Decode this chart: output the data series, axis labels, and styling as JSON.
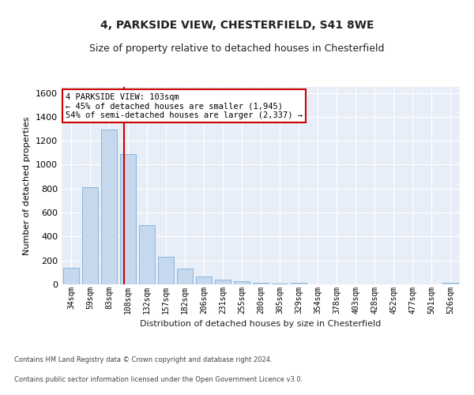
{
  "title1": "4, PARKSIDE VIEW, CHESTERFIELD, S41 8WE",
  "title2": "Size of property relative to detached houses in Chesterfield",
  "xlabel": "Distribution of detached houses by size in Chesterfield",
  "ylabel": "Number of detached properties",
  "categories": [
    "34sqm",
    "59sqm",
    "83sqm",
    "108sqm",
    "132sqm",
    "157sqm",
    "182sqm",
    "206sqm",
    "231sqm",
    "255sqm",
    "280sqm",
    "305sqm",
    "329sqm",
    "354sqm",
    "378sqm",
    "403sqm",
    "428sqm",
    "452sqm",
    "477sqm",
    "501sqm",
    "526sqm"
  ],
  "values": [
    140,
    815,
    1295,
    1090,
    495,
    230,
    130,
    65,
    38,
    25,
    15,
    5,
    15,
    0,
    0,
    0,
    0,
    0,
    0,
    0,
    15
  ],
  "bar_color": "#c5d8ed",
  "bar_edge_color": "#7aafd4",
  "annotation_text_line1": "4 PARKSIDE VIEW: 103sqm",
  "annotation_text_line2": "← 45% of detached houses are smaller (1,945)",
  "annotation_text_line3": "54% of semi-detached houses are larger (2,337) →",
  "vline_x_pos": 2.8,
  "ylim": [
    0,
    1650
  ],
  "yticks": [
    0,
    200,
    400,
    600,
    800,
    1000,
    1200,
    1400,
    1600
  ],
  "footer1": "Contains HM Land Registry data © Crown copyright and database right 2024.",
  "footer2": "Contains public sector information licensed under the Open Government Licence v3.0.",
  "fig_bg_color": "#ffffff",
  "plot_bg_color": "#e8eef8",
  "grid_color": "#ffffff",
  "annotation_box_facecolor": "#ffffff",
  "annotation_box_edgecolor": "#cc0000",
  "vline_color": "#cc0000",
  "title1_fontsize": 10,
  "title2_fontsize": 9,
  "ylabel_fontsize": 8,
  "xlabel_fontsize": 8,
  "tick_fontsize": 7,
  "footer_fontsize": 6,
  "annotation_fontsize": 7.5
}
